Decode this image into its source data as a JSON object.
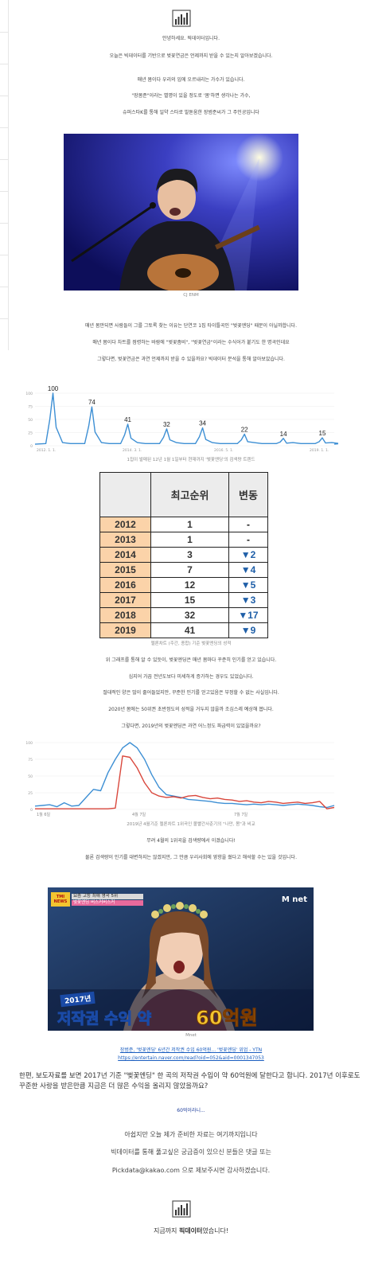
{
  "intro": {
    "greeting": "안녕하세요. 픽데이터입니다.",
    "topic": "오늘은 빅데이터를 기반으로 벚꽃연금은 언제까지 받을 수 있는지 알아보겠습니다.",
    "line1": "매년 봄이다 우리의 입에 오르내리는 가수가 있습니다.",
    "line2": "\"장봄준\"이라는 별명이 있을 정도로 '봄'하면 생각나는 가수,",
    "line3": "슈퍼스타K를 통해 일약 스타로 발돋움한 장범준씨가 그 주인공입니다"
  },
  "photo1": {
    "caption": "CJ ENM"
  },
  "section2": {
    "line1": "매년 봄만되면 사람들이 그를 그토록 찾는 이유는 단연코 1집 타이틀곡인 \"벚꽃엔딩\" 때문이 아닐까합니다.",
    "line2": "매년 봄이다 차트를 점령하는 바람에 \"벚꽃좀비\", \"벚꽃연금\"이라는 수식어가 붙기도 한 명곡인데요",
    "line3": "그렇다면, 벚꽃연금은 과연 언제까지 받을 수 있을까요? 빅데이터 분석을 통해 알아보았습니다."
  },
  "chart1": {
    "caption": "1집이 발매된 12년 1월 1일부터 현재까지 '벚꽃엔딩'의 검색량 트렌드",
    "chart_data": {
      "type": "line",
      "yticks": [
        "100",
        "75",
        "50",
        "25",
        "0"
      ],
      "xticks": [
        "2012. 1. 1.",
        "2014. 3. 1.",
        "2016. 5. 1.",
        "2019. 1. 1."
      ],
      "peaks": [
        100,
        74,
        41,
        32,
        34,
        22,
        14,
        15
      ],
      "color": "#3d8fd4"
    }
  },
  "table": {
    "caption": "멜론차트 (주간, 종합) 기준 벚꽃엔딩의 성적",
    "header_rank": "최고순위",
    "header_change": "변동",
    "rows": [
      {
        "year": "2012",
        "rank": "1",
        "change": "-"
      },
      {
        "year": "2013",
        "rank": "1",
        "change": "-"
      },
      {
        "year": "2014",
        "rank": "3",
        "change": "▼2"
      },
      {
        "year": "2015",
        "rank": "7",
        "change": "▼4"
      },
      {
        "year": "2016",
        "rank": "12",
        "change": "▼5"
      },
      {
        "year": "2017",
        "rank": "15",
        "change": "▼3"
      },
      {
        "year": "2018",
        "rank": "32",
        "change": "▼17"
      },
      {
        "year": "2019",
        "rank": "41",
        "change": "▼9"
      }
    ]
  },
  "section3": {
    "line1": "위 그래프를 통해 알 수 있듯이, 벚꽃엔딩은 매년 봄마다 꾸준히 인기를 얻고 있습니다.",
    "line2": "심지어 가끔 전년도보다 미세하게 증가하는 경우도 있었습니다.",
    "line3": "절대적인 양은 많이 줄어들었지만, 꾸준한 인기를 얻고있음은 부정할 수 없는 사실입니다.",
    "line4": "2020년 봄에는 50위권 초반정도의 성적을 거두지 않을까 조심스레 예상해 봅니다.",
    "line5": "그렇다면, 2019년의 벚꽃엔딩은 과연 어느정도 파급력이 있었을까요?"
  },
  "chart2": {
    "caption": "2019년 4월기준 멜론차트 1위곡인 볼빨간사춘기의 \"나만, 봄\"과 비교",
    "chart_data": {
      "type": "line",
      "yticks": [
        "100",
        "75",
        "50",
        "25",
        "0"
      ],
      "xticks": [
        "1월 6일",
        "4월 7일",
        "7월 7일"
      ],
      "series": [
        {
          "color": "#3d8fd4"
        },
        {
          "color": "#d9473c"
        }
      ]
    }
  },
  "section4": {
    "line1": "무려 4월의 1위곡을 검색량에서 이겼습니다!",
    "line2": "물론 검색량이 인기를 대변하지는 않겠지만, 그 만큼 우리사회에 영향을 줬다고 해석할 수는 있을 것입니다."
  },
  "photo2": {
    "caption": "Mnet",
    "broadcaster": "M net",
    "show_logo": "TMI NEWS",
    "banner_top": "요즘 고등 최애 명곡 5위",
    "banner_sub": "벚꽃엔딩 버스커버스커",
    "overlay_year": "2017년",
    "overlay_text": "저작권 수익 약",
    "overlay_amount": "60억원"
  },
  "source": {
    "link_title": "장범준, '벚꽃엔딩' 6년간 저작권 수입 60억원... '벚꽃엔딩' 위엄 - YTN",
    "link_url": "https://entertain.naver.com/read?oid=052&aid=0001347053"
  },
  "outro": {
    "paragraph": "한편, 보도자료를 보면 2017년 기준 \"벚꽃엔딩\" 한 곡의 저작권 수입이 약 60억원에 달한다고 합니다. 2017년 이후로도 꾸준한 사랑을 받은만큼 지금은 더 많은 수익을 올리지 않았을까요?",
    "wow": "60억이라니...",
    "closing1": "아쉽지만 오늘 제가 준비한 자료는 여기까지입니다",
    "closing2": "빅데이터를 통해 풀고싶은 궁금증이 있으신 분들은 댓글 또는",
    "closing3": "Pickdata@kakao.com  으로 제보주시면 감사하겠습니다.",
    "signoff_prefix": "지금까지 ",
    "signoff_brand": "픽데이터",
    "signoff_suffix": "였습니다!"
  }
}
